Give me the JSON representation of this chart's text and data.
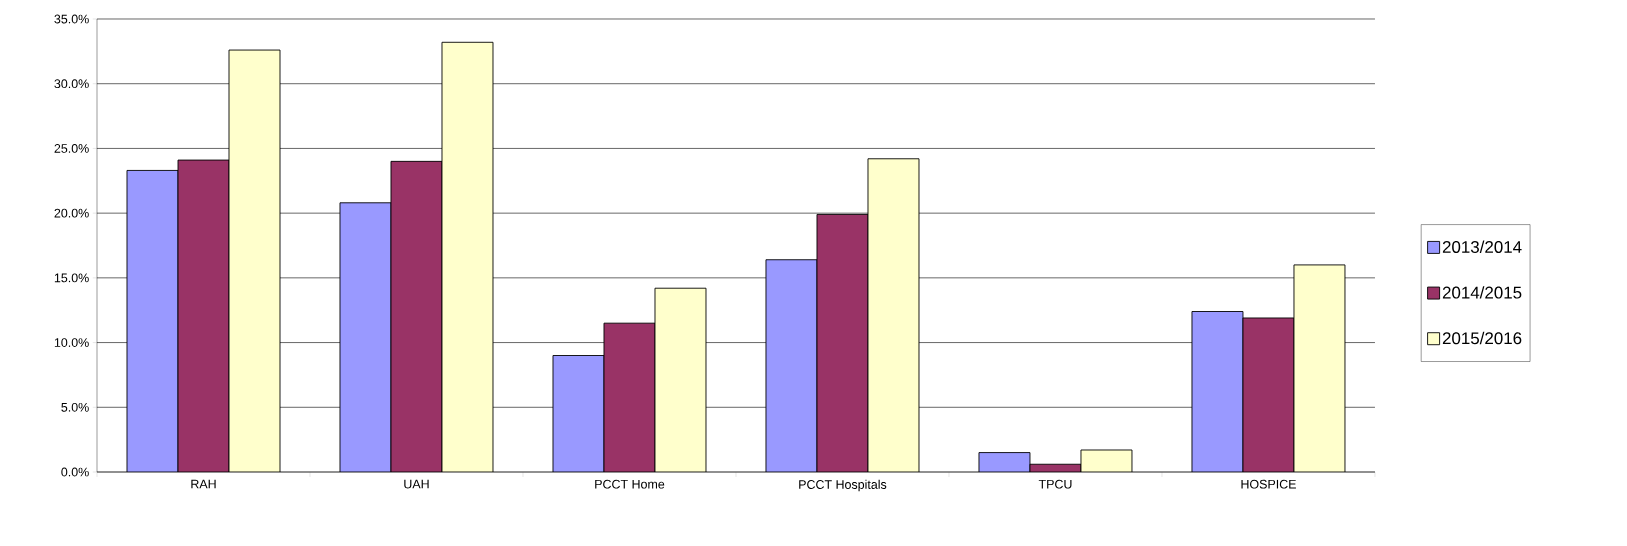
{
  "chart_data": {
    "type": "bar",
    "categories": [
      "RAH",
      "UAH",
      "PCCT Home",
      "PCCT Hospitals",
      "TPCU",
      "HOSPICE"
    ],
    "series": [
      {
        "name": "2013/2014",
        "color": "#9999ff",
        "values": [
          23.3,
          20.8,
          9.0,
          16.4,
          1.5,
          12.4
        ]
      },
      {
        "name": "2014/2015",
        "color": "#993366",
        "values": [
          24.1,
          24.0,
          11.5,
          19.9,
          0.6,
          11.9
        ]
      },
      {
        "name": "2015/2016",
        "color": "#ffffcc",
        "values": [
          32.6,
          33.2,
          14.2,
          24.2,
          1.7,
          16.0
        ]
      }
    ],
    "ylim": [
      0,
      35
    ],
    "yticks": [
      {
        "value": 0,
        "label": "0.0%"
      },
      {
        "value": 5,
        "label": "5.0%"
      },
      {
        "value": 10,
        "label": "10.0%"
      },
      {
        "value": 15,
        "label": "15.0%"
      },
      {
        "value": 20,
        "label": "20.0%"
      },
      {
        "value": 25,
        "label": "25.0%"
      },
      {
        "value": 30,
        "label": "30.0%"
      },
      {
        "value": 35,
        "label": "35.0%"
      }
    ],
    "grid": "y",
    "legend": "right"
  }
}
